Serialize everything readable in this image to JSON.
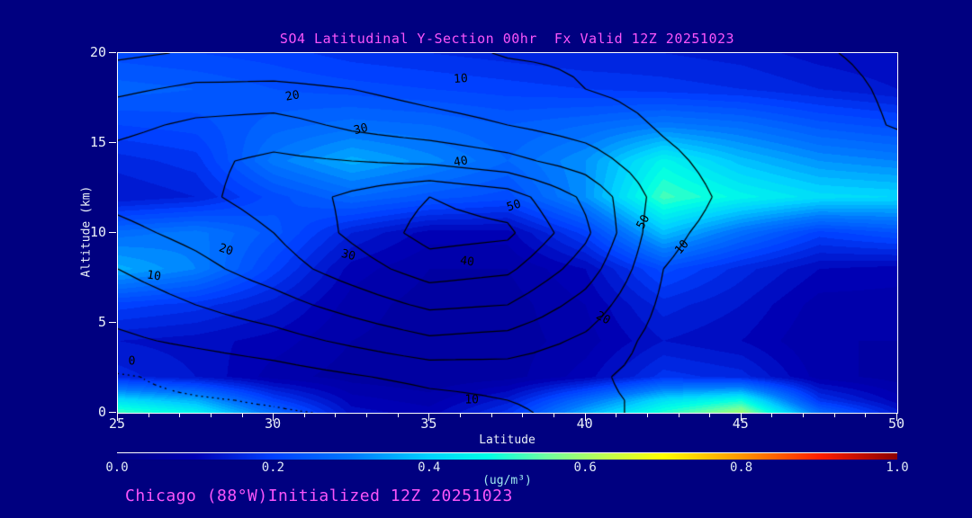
{
  "colors": {
    "bg": "#000080",
    "title": "#fa55fa",
    "axis_text": "#e9eff7",
    "cbar_text": "#dfe9f5",
    "units": "#9feaef",
    "frame": "#ffffff",
    "contour": "#000000"
  },
  "title": "SO4 Latitudinal Y-Section 00hr  Fx Valid 12Z 20251023",
  "footer": "Chicago (88°W)Initialized 12Z 20251023",
  "axes": {
    "x": {
      "label": "Latitude",
      "min": 25,
      "max": 50,
      "major_ticks": [
        "25",
        "30",
        "35",
        "40",
        "45",
        "50"
      ],
      "minor_step": 1
    },
    "y": {
      "label": "Altitude (km)",
      "min": 0,
      "max": 20,
      "major_ticks": [
        "0",
        "5",
        "10",
        "15",
        "20"
      ]
    }
  },
  "colorbar": {
    "units": "(ug/m³)",
    "ticks": [
      "0.0",
      "0.2",
      "0.4",
      "0.6",
      "0.8",
      "1.0"
    ],
    "min": 0.0,
    "max": 1.0,
    "stops": [
      {
        "v": 0.0,
        "c": "#000085"
      },
      {
        "v": 0.1,
        "c": "#0000b4"
      },
      {
        "v": 0.2,
        "c": "#0040ff"
      },
      {
        "v": 0.3,
        "c": "#0078ff"
      },
      {
        "v": 0.4,
        "c": "#00d2ff"
      },
      {
        "v": 0.475,
        "c": "#00ffe6"
      },
      {
        "v": 0.55,
        "c": "#6effa0"
      },
      {
        "v": 0.625,
        "c": "#beff50"
      },
      {
        "v": 0.7,
        "c": "#ffff00"
      },
      {
        "v": 0.8,
        "c": "#ff9600"
      },
      {
        "v": 0.9,
        "c": "#ff1e00"
      },
      {
        "v": 1.0,
        "c": "#8c0000"
      }
    ]
  },
  "chart_data": {
    "type": "heatmap",
    "title": "SO4 Latitudinal Y-Section 00hr  Fx Valid 12Z 20251023",
    "xlabel": "Latitude",
    "ylabel": "Altitude (km)",
    "xlim": [
      25,
      50
    ],
    "ylim": [
      0,
      20
    ],
    "fill_units": "ug/m³",
    "fill_quant_step": 0.02,
    "lats": [
      25,
      27.5,
      30,
      32.5,
      35,
      37.5,
      40,
      42.5,
      45,
      47.5,
      50
    ],
    "alts": [
      0,
      0.7,
      2,
      4,
      6,
      8,
      10,
      12,
      14,
      16,
      18,
      20
    ],
    "fill_grid": [
      [
        0.52,
        0.46,
        0.28,
        0.12,
        0.1,
        0.18,
        0.36,
        0.5,
        0.6,
        0.28,
        0.14
      ],
      [
        0.42,
        0.36,
        0.2,
        0.1,
        0.08,
        0.14,
        0.28,
        0.42,
        0.48,
        0.18,
        0.1
      ],
      [
        0.16,
        0.13,
        0.08,
        0.06,
        0.05,
        0.06,
        0.1,
        0.18,
        0.16,
        0.08,
        0.06
      ],
      [
        0.13,
        0.12,
        0.1,
        0.07,
        0.06,
        0.06,
        0.08,
        0.13,
        0.11,
        0.07,
        0.07
      ],
      [
        0.2,
        0.18,
        0.14,
        0.08,
        0.06,
        0.06,
        0.09,
        0.16,
        0.13,
        0.08,
        0.08
      ],
      [
        0.36,
        0.31,
        0.2,
        0.1,
        0.07,
        0.07,
        0.11,
        0.22,
        0.16,
        0.11,
        0.1
      ],
      [
        0.28,
        0.3,
        0.24,
        0.15,
        0.1,
        0.1,
        0.2,
        0.38,
        0.28,
        0.2,
        0.23
      ],
      [
        0.13,
        0.15,
        0.22,
        0.27,
        0.24,
        0.22,
        0.33,
        0.52,
        0.46,
        0.42,
        0.41
      ],
      [
        0.16,
        0.18,
        0.3,
        0.36,
        0.32,
        0.27,
        0.33,
        0.46,
        0.38,
        0.33,
        0.31
      ],
      [
        0.21,
        0.22,
        0.26,
        0.28,
        0.27,
        0.25,
        0.27,
        0.3,
        0.28,
        0.24,
        0.22
      ],
      [
        0.26,
        0.25,
        0.23,
        0.22,
        0.21,
        0.2,
        0.19,
        0.18,
        0.17,
        0.15,
        0.13
      ],
      [
        0.22,
        0.21,
        0.2,
        0.18,
        0.17,
        0.16,
        0.15,
        0.15,
        0.14,
        0.12,
        0.11
      ]
    ],
    "contour_levels": [
      0,
      10,
      20,
      30,
      40,
      50,
      60
    ],
    "contour_grid": [
      [
        -2.0,
        -1.0,
        -0.5,
        0.5,
        6,
        9,
        12,
        8,
        2.0,
        1,
        1
      ],
      [
        -1.5,
        -0.5,
        0.5,
        2,
        7,
        10,
        12,
        8,
        2.5,
        1,
        1
      ],
      [
        -0.8,
        2,
        5,
        9,
        13,
        14,
        12,
        6,
        3,
        1,
        1
      ],
      [
        8,
        12,
        16,
        22,
        28,
        26,
        18,
        6,
        3,
        2,
        2
      ],
      [
        14,
        20,
        26,
        34,
        42,
        40,
        26,
        8,
        4,
        3,
        3
      ],
      [
        20,
        27,
        35,
        45,
        55,
        52,
        35,
        10,
        5,
        4,
        3
      ],
      [
        27,
        33,
        40,
        52,
        64,
        62,
        42,
        12,
        6,
        5,
        4
      ],
      [
        33,
        38,
        44,
        52,
        60,
        55,
        38,
        15,
        7,
        5,
        4
      ],
      [
        34,
        38,
        42,
        40,
        38,
        33,
        25,
        12,
        6,
        4,
        3
      ],
      [
        27,
        32,
        34,
        28,
        24,
        20,
        15,
        9,
        5,
        4,
        11
      ],
      [
        18,
        22,
        22,
        20,
        16,
        13,
        10,
        7,
        4,
        6,
        12
      ],
      [
        8,
        11,
        13,
        13,
        12,
        9.5,
        9,
        6,
        3,
        9,
        13
      ]
    ],
    "contour_labels": [
      {
        "text": "10",
        "lat": 36.0,
        "alt": 18.55,
        "rot": -4
      },
      {
        "text": "20",
        "lat": 30.6,
        "alt": 17.6,
        "rot": -10
      },
      {
        "text": "30",
        "lat": 32.8,
        "alt": 15.75,
        "rot": -14
      },
      {
        "text": "40",
        "lat": 36.0,
        "alt": 13.95,
        "rot": -10
      },
      {
        "text": "50",
        "lat": 37.7,
        "alt": 11.5,
        "rot": -18
      },
      {
        "text": "50",
        "lat": 41.85,
        "alt": 10.6,
        "rot": -62
      },
      {
        "text": "10",
        "lat": 43.1,
        "alt": 9.2,
        "rot": -50
      },
      {
        "text": "30",
        "lat": 32.4,
        "alt": 8.75,
        "rot": 14
      },
      {
        "text": "40",
        "lat": 36.2,
        "alt": 8.4,
        "rot": 8
      },
      {
        "text": "20",
        "lat": 28.45,
        "alt": 9.05,
        "rot": 18
      },
      {
        "text": "10",
        "lat": 26.15,
        "alt": 7.6,
        "rot": 8
      },
      {
        "text": "20",
        "lat": 40.55,
        "alt": 5.25,
        "rot": 28
      },
      {
        "text": "10",
        "lat": 36.35,
        "alt": 0.7,
        "rot": 0
      },
      {
        "text": "0",
        "lat": 25.45,
        "alt": 2.85,
        "rot": 0
      }
    ]
  }
}
